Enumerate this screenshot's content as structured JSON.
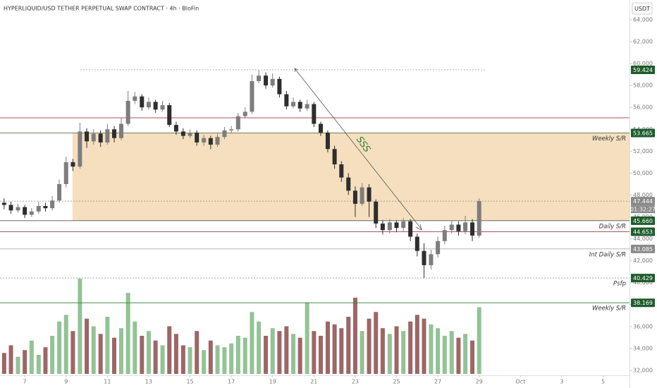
{
  "chart_data": {
    "type": "candlestick",
    "title": "HYPERLIQUID/USD TETHER PERPETUAL SWAP CONTRACT · 4h · BloFin",
    "currency": "USDT",
    "annotation": "SSS",
    "countdown": "01:32:27",
    "up_color": "#7d7d7d",
    "down_color": "#2e2e2e",
    "volume_up_color": "#7fb882",
    "volume_down_color": "#8c4b4b",
    "xlim": [
      5.8,
      36.28
    ],
    "xticks": [
      7,
      9,
      11,
      13,
      15,
      17,
      19,
      21,
      23,
      25,
      27,
      29,
      {
        "value": 31,
        "label": "Oct"
      },
      {
        "value": 33,
        "label": "3"
      },
      {
        "value": 35,
        "label": "5"
      }
    ],
    "ylim": [
      31550,
      65800
    ],
    "yticks": [
      {
        "value": 32000,
        "label": "32,000"
      },
      {
        "value": 34000,
        "label": "34,000"
      },
      {
        "value": 36000,
        "label": "36,000"
      },
      {
        "value": 38000,
        "label": "38,000"
      },
      {
        "value": 40000,
        "label": "40,000"
      },
      {
        "value": 42000,
        "label": "42,000"
      },
      {
        "value": 44000,
        "label": "44,000"
      },
      {
        "value": 46000,
        "label": "46,000"
      },
      {
        "value": 48000,
        "label": "48,000"
      },
      {
        "value": 50000,
        "label": "50,000"
      },
      {
        "value": 52000,
        "label": "52,000"
      },
      {
        "value": 54000,
        "label": "54,000"
      },
      {
        "value": 56000,
        "label": "56,000"
      },
      {
        "value": 58000,
        "label": "58,000"
      },
      {
        "value": 60000,
        "label": "60,000"
      },
      {
        "value": 62000,
        "label": "62,000"
      },
      {
        "value": 64000,
        "label": "64,000"
      }
    ],
    "volume_lim": [
      0,
      100
    ],
    "zone": {
      "from": 45660,
      "to": 53665,
      "color": "#f3d9b3"
    },
    "levels": [
      {
        "value": 59424,
        "label": "59.424",
        "color": "#1e5c2c",
        "line": "#999",
        "dash": true
      },
      {
        "value": 55050,
        "line": "#8b1a1a"
      },
      {
        "value": 53665,
        "label": "53.665",
        "color": "#1e5c2c",
        "line": "#3d5a2f",
        "note": "Weekly S/R"
      },
      {
        "value": 47444,
        "label": "47.444",
        "color": "#8a8a8a",
        "line": "#888",
        "dash": true
      },
      {
        "value": 45660,
        "label": "45.660",
        "color": "#1e5c2c",
        "line": "#555",
        "note": "Daily S/R"
      },
      {
        "value": 44653,
        "label": "44.653",
        "color": "#1e5c2c",
        "line": "#8b1a1a"
      },
      {
        "value": 43085,
        "label": "43.085",
        "color": "#8a8a8a",
        "line": "#aaa",
        "note": "Int Daily S/R"
      },
      {
        "value": 40429,
        "label": "40.429",
        "color": "#1e5c2c",
        "line": "#999",
        "dash": true,
        "note": "Psfp"
      },
      {
        "value": 38169,
        "label": "38.169",
        "color": "#1e5c2c",
        "line": "#2e7d32",
        "note": "Weekly S/R"
      }
    ],
    "x": [
      6,
      6.33,
      6.67,
      7,
      7.33,
      7.67,
      8,
      8.33,
      8.67,
      9,
      9.33,
      9.67,
      10,
      10.33,
      10.67,
      11,
      11.33,
      11.67,
      12,
      12.33,
      12.67,
      13,
      13.33,
      13.67,
      14,
      14.33,
      14.67,
      15,
      15.33,
      15.67,
      16,
      16.33,
      16.67,
      17,
      17.33,
      17.67,
      18,
      18.33,
      18.67,
      19,
      19.33,
      19.67,
      20,
      20.33,
      20.67,
      21,
      21.33,
      21.67,
      22,
      22.33,
      22.67,
      23,
      23.33,
      23.67,
      24,
      24.33,
      24.67,
      25,
      25.33,
      25.67,
      26,
      26.33,
      26.67,
      27,
      27.33,
      27.67,
      28,
      28.33,
      28.67,
      29
    ],
    "open": [
      47300,
      47100,
      46600,
      46900,
      46200,
      46500,
      47000,
      46800,
      47500,
      49000,
      51000,
      50600,
      53800,
      52900,
      53600,
      52800,
      54000,
      53200,
      54500,
      56600,
      57000,
      56000,
      56500,
      55800,
      56200,
      54400,
      53800,
      53400,
      53700,
      52800,
      53200,
      52600,
      53300,
      53900,
      54000,
      55200,
      55600,
      58400,
      58900,
      58000,
      58600,
      57200,
      56100,
      56500,
      55900,
      56300,
      54500,
      53700,
      52200,
      50800,
      49600,
      48400,
      47200,
      48700,
      47400,
      45400,
      44800,
      45500,
      45000,
      45600,
      44200,
      42900,
      41600,
      42600,
      43800,
      44800,
      45300,
      44700,
      45500,
      44300
    ],
    "high": [
      47700,
      47400,
      47200,
      47100,
      46800,
      47400,
      47300,
      47900,
      49400,
      51500,
      51300,
      54600,
      54100,
      54000,
      53900,
      54500,
      54300,
      55000,
      57500,
      57400,
      57200,
      56900,
      56700,
      56600,
      56400,
      54700,
      54100,
      54000,
      53900,
      53500,
      53400,
      53600,
      54200,
      54300,
      55500,
      56000,
      59000,
      59424,
      59200,
      59100,
      58800,
      57500,
      56900,
      56700,
      56700,
      56500,
      54700,
      53900,
      52500,
      51100,
      50000,
      48800,
      49100,
      49000,
      47600,
      45700,
      45800,
      45700,
      45900,
      45800,
      44500,
      43600,
      43000,
      44200,
      45200,
      45700,
      45600,
      46100,
      45800,
      47700
    ],
    "low": [
      46700,
      46300,
      46400,
      45900,
      46000,
      46300,
      46500,
      46600,
      47300,
      48700,
      50200,
      50400,
      52300,
      52600,
      52400,
      52600,
      52800,
      53000,
      54300,
      56300,
      55700,
      55800,
      55500,
      55600,
      54200,
      53500,
      53100,
      53200,
      52500,
      52500,
      52200,
      52400,
      53100,
      53700,
      53800,
      55000,
      55400,
      58200,
      57700,
      57800,
      56900,
      55800,
      55900,
      55600,
      55700,
      54200,
      53400,
      51900,
      50400,
      49200,
      48000,
      46000,
      47000,
      46000,
      45000,
      44400,
      44500,
      44600,
      44700,
      43800,
      42400,
      40429,
      41200,
      42300,
      43500,
      44500,
      44300,
      44400,
      43800,
      44100
    ],
    "close": [
      47100,
      46600,
      46900,
      46200,
      46500,
      47000,
      46800,
      47500,
      49000,
      51000,
      50600,
      53800,
      52900,
      53600,
      52800,
      54000,
      53200,
      54500,
      56600,
      57000,
      56000,
      56500,
      55800,
      56200,
      54400,
      53800,
      53400,
      53700,
      52800,
      53200,
      52600,
      53300,
      53900,
      54000,
      55200,
      55600,
      58400,
      58900,
      58000,
      58600,
      57200,
      56100,
      56500,
      55900,
      56300,
      54500,
      53700,
      52200,
      50800,
      49600,
      48400,
      47200,
      48700,
      47400,
      45400,
      44800,
      45500,
      45000,
      45600,
      44200,
      42900,
      41600,
      42600,
      43800,
      44800,
      45300,
      44700,
      45500,
      44300,
      47440
    ],
    "volume": [
      22,
      30,
      18,
      25,
      35,
      20,
      28,
      40,
      55,
      62,
      45,
      100,
      58,
      50,
      42,
      60,
      38,
      48,
      85,
      55,
      40,
      45,
      35,
      30,
      50,
      42,
      30,
      28,
      45,
      25,
      35,
      30,
      28,
      32,
      40,
      38,
      65,
      55,
      40,
      48,
      45,
      50,
      42,
      38,
      75,
      45,
      40,
      55,
      52,
      48,
      60,
      80,
      45,
      58,
      65,
      48,
      42,
      50,
      45,
      55,
      62,
      58,
      52,
      48,
      40,
      45,
      38,
      42,
      35,
      70
    ]
  }
}
